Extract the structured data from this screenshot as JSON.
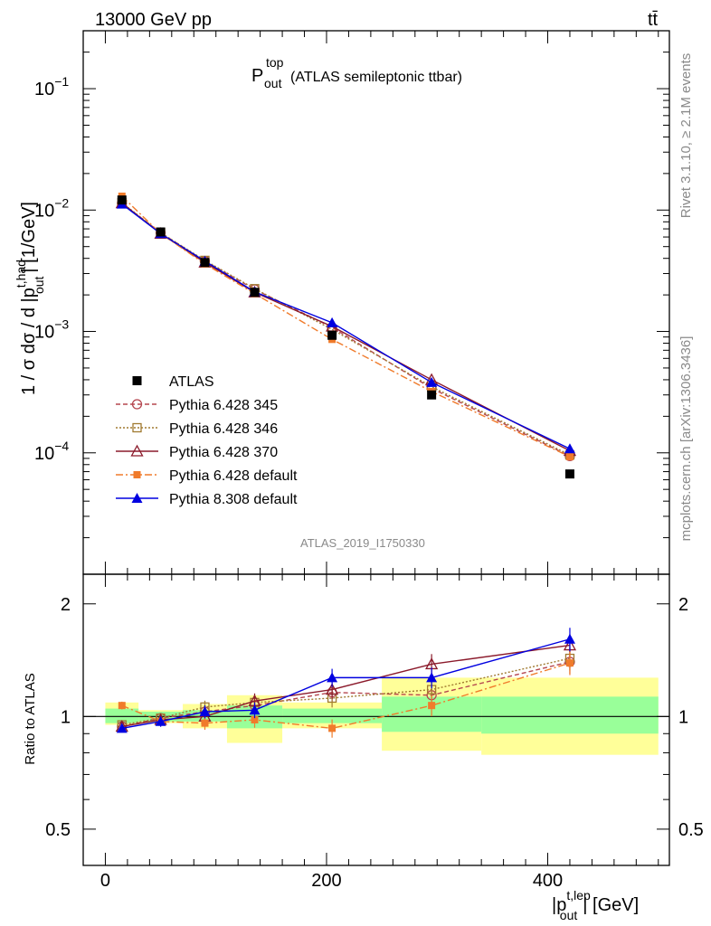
{
  "header": {
    "energy_label": "13000 GeV pp",
    "process_label": "tt̄",
    "plot_title_main": "P",
    "plot_title_sup": "top",
    "plot_title_sub": "out",
    "plot_title_suffix": "(ATLAS semileptonic ttbar)",
    "rivet_label": "Rivet 3.1.10, ≥ 2.1M events",
    "mcplots_label": "mcplots.cern.ch [arXiv:1306.3436]",
    "analysis_label": "ATLAS_2019_I1750330"
  },
  "axes": {
    "ylabel_main_pre": "1 / σ dσ / d |p",
    "ylabel_main_sup": "t,had",
    "ylabel_main_sub": "out",
    "ylabel_main_post": "| [1/GeV]",
    "ylabel_ratio": "Ratio to ATLAS",
    "xlabel_pre": "|p",
    "xlabel_sup": "t,lep",
    "xlabel_sub": "out",
    "xlabel_post": "| [GeV]"
  },
  "chart_data": [
    {
      "type": "line",
      "panel": "main",
      "xlim": [
        -20,
        510
      ],
      "ylim": [
        1e-05,
        0.3
      ],
      "y_scale": "log",
      "y_ticks": [
        {
          "base": "10",
          "exp": "−1",
          "value": 0.1
        },
        {
          "base": "10",
          "exp": "−2",
          "value": 0.01
        },
        {
          "base": "10",
          "exp": "−3",
          "value": 0.001
        },
        {
          "base": "10",
          "exp": "−4",
          "value": 0.0001
        }
      ],
      "legend_position": "lower-left",
      "series": [
        {
          "name": "ATLAS",
          "color": "#000000",
          "marker": "square-filled",
          "dash": "none",
          "x": [
            15,
            50,
            90,
            135,
            205,
            295,
            420
          ],
          "y": [
            0.0121,
            0.0066,
            0.0037,
            0.0021,
            0.00093,
            0.0003,
            6.7e-05
          ]
        },
        {
          "name": "Pythia 6.428 345",
          "color": "#b5464f",
          "marker": "circle-open",
          "dash": "5,3",
          "x": [
            15,
            50,
            90,
            135,
            205,
            295,
            420
          ],
          "y": [
            0.0114,
            0.0065,
            0.0038,
            0.00222,
            0.00108,
            0.00034,
            9.4e-05
          ]
        },
        {
          "name": "Pythia 6.428 346",
          "color": "#a07a30",
          "marker": "square-open",
          "dash": "2,2",
          "x": [
            15,
            50,
            90,
            135,
            205,
            295,
            420
          ],
          "y": [
            0.0115,
            0.0065,
            0.00385,
            0.00225,
            0.00104,
            0.00035,
            9.6e-05
          ]
        },
        {
          "name": "Pythia 6.428 370",
          "color": "#8b1a2b",
          "marker": "triangle-open",
          "dash": "none",
          "x": [
            15,
            50,
            90,
            135,
            205,
            295,
            420
          ],
          "y": [
            0.0114,
            0.0064,
            0.0037,
            0.0021,
            0.0011,
            0.0004,
            0.000104
          ]
        },
        {
          "name": "Pythia 6.428 default",
          "color": "#f07b2b",
          "marker": "square-filled-small",
          "dash": "8,3,2,3",
          "x": [
            15,
            50,
            90,
            135,
            205,
            295,
            420
          ],
          "y": [
            0.013,
            0.0064,
            0.0036,
            0.00205,
            0.00086,
            0.00032,
            9.3e-05
          ]
        },
        {
          "name": "Pythia 8.308 default",
          "color": "#0000e0",
          "marker": "triangle-filled",
          "dash": "none",
          "x": [
            15,
            50,
            90,
            135,
            205,
            295,
            420
          ],
          "y": [
            0.0112,
            0.0064,
            0.0038,
            0.00212,
            0.00118,
            0.00038,
            0.000108
          ]
        }
      ]
    },
    {
      "type": "line",
      "panel": "ratio",
      "xlim": [
        -20,
        510
      ],
      "ylim": [
        0.4,
        2.4
      ],
      "y_scale": "log",
      "y_ticks": [
        0.5,
        1,
        2
      ],
      "y_tick_labels": [
        "0.5",
        "1",
        "2"
      ],
      "x_ticks": [
        0,
        200,
        400
      ],
      "x_tick_labels": [
        "0",
        "200",
        "400"
      ],
      "bands": [
        {
          "x0": 0,
          "x1": 30,
          "inner": [
            0.96,
            1.05
          ],
          "outer": [
            0.95,
            1.09
          ]
        },
        {
          "x0": 30,
          "x1": 70,
          "inner": [
            0.97,
            1.03
          ],
          "outer": [
            0.96,
            1.04
          ]
        },
        {
          "x0": 70,
          "x1": 110,
          "inner": [
            0.97,
            1.04
          ],
          "outer": [
            0.93,
            1.08
          ]
        },
        {
          "x0": 110,
          "x1": 160,
          "inner": [
            0.93,
            1.07
          ],
          "outer": [
            0.85,
            1.14
          ]
        },
        {
          "x0": 160,
          "x1": 250,
          "inner": [
            0.96,
            1.05
          ],
          "outer": [
            0.93,
            1.09
          ]
        },
        {
          "x0": 250,
          "x1": 340,
          "inner": [
            0.91,
            1.13
          ],
          "outer": [
            0.81,
            1.27
          ]
        },
        {
          "x0": 340,
          "x1": 500,
          "inner": [
            0.9,
            1.13
          ],
          "outer": [
            0.79,
            1.27
          ]
        }
      ],
      "series": [
        {
          "name": "Pythia 6.428 345",
          "x": [
            15,
            50,
            90,
            135,
            205,
            295,
            420
          ],
          "y": [
            0.94,
            0.99,
            1.03,
            1.07,
            1.16,
            1.14,
            1.4
          ]
        },
        {
          "name": "Pythia 6.428 346",
          "x": [
            15,
            50,
            90,
            135,
            205,
            295,
            420
          ],
          "y": [
            0.95,
            0.99,
            1.06,
            1.09,
            1.12,
            1.18,
            1.43
          ]
        },
        {
          "name": "Pythia 6.428 370",
          "x": [
            15,
            50,
            90,
            135,
            205,
            295,
            420
          ],
          "y": [
            0.94,
            0.98,
            1.0,
            1.1,
            1.18,
            1.38,
            1.55
          ]
        },
        {
          "name": "Pythia 6.428 default",
          "x": [
            15,
            50,
            90,
            135,
            205,
            295,
            420
          ],
          "y": [
            1.07,
            0.97,
            0.96,
            0.98,
            0.93,
            1.07,
            1.39
          ]
        },
        {
          "name": "Pythia 8.308 default",
          "x": [
            15,
            50,
            90,
            135,
            205,
            295,
            420
          ],
          "y": [
            0.93,
            0.97,
            1.03,
            1.04,
            1.27,
            1.27,
            1.61
          ]
        }
      ]
    }
  ]
}
